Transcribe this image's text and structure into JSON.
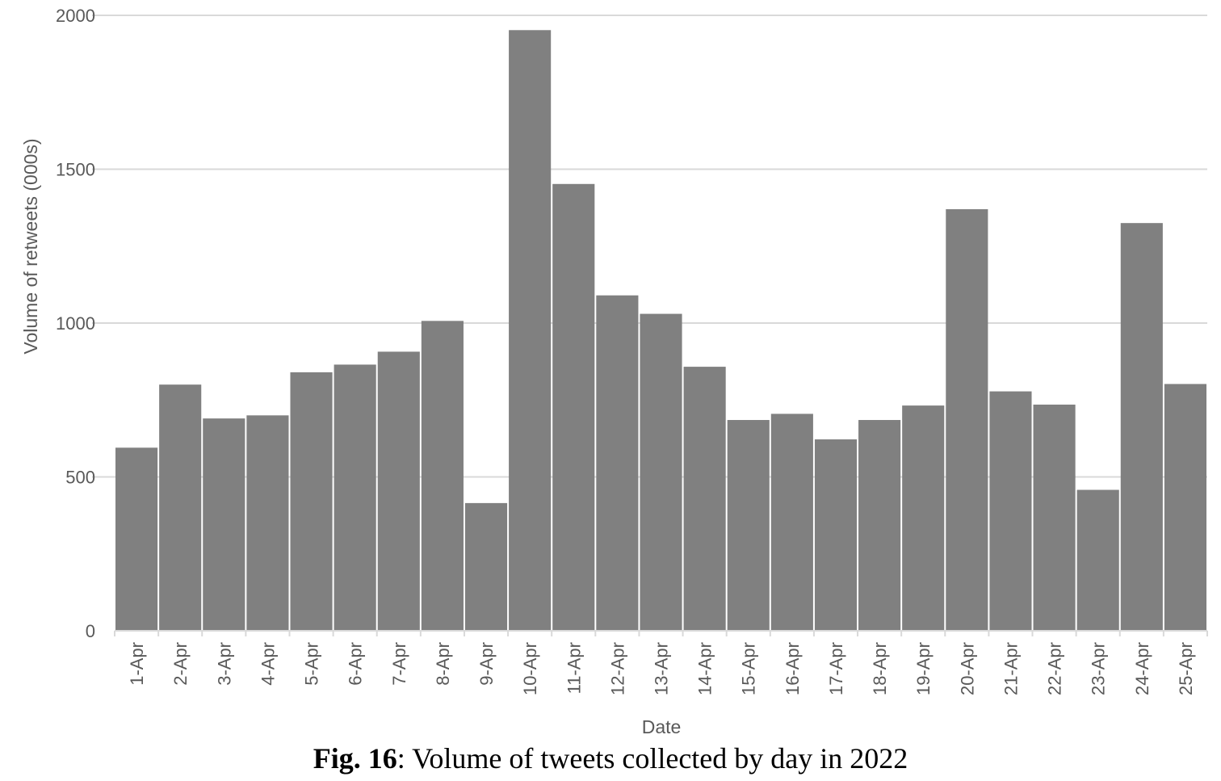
{
  "chart_data": {
    "type": "bar",
    "categories": [
      "1-Apr",
      "2-Apr",
      "3-Apr",
      "4-Apr",
      "5-Apr",
      "6-Apr",
      "7-Apr",
      "8-Apr",
      "9-Apr",
      "10-Apr",
      "11-Apr",
      "12-Apr",
      "13-Apr",
      "14-Apr",
      "15-Apr",
      "16-Apr",
      "17-Apr",
      "18-Apr",
      "19-Apr",
      "20-Apr",
      "21-Apr",
      "22-Apr",
      "23-Apr",
      "24-Apr",
      "25-Apr"
    ],
    "values": [
      595,
      800,
      690,
      700,
      840,
      865,
      907,
      1007,
      415,
      1952,
      1452,
      1090,
      1030,
      858,
      685,
      705,
      622,
      685,
      732,
      1370,
      778,
      735,
      458,
      1325,
      802
    ],
    "xlabel": "Date",
    "ylabel": "Volume of retweets (000s)",
    "ylim": [
      0,
      2000
    ],
    "yticks": [
      0,
      500,
      1000,
      1500,
      2000
    ],
    "grid": true,
    "bar_color": "#808080",
    "grid_color": "#d9d9d9"
  },
  "caption": {
    "label": "Fig. 16",
    "text": ": Volume of tweets collected by day in 2022"
  }
}
